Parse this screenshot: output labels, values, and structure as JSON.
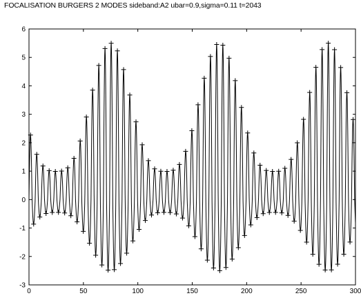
{
  "chart_data": {
    "type": "line",
    "title": "FOCALISATION  BURGERS 2 MODES sideband:A2 ubar=0.9,sigma=0.11 t=2043",
    "xlabel": "",
    "ylabel": "",
    "xlim": [
      0,
      300
    ],
    "ylim": [
      -3,
      6
    ],
    "xticks": [
      0,
      50,
      100,
      150,
      200,
      250,
      300
    ],
    "yticks": [
      -3,
      -2,
      -1,
      0,
      1,
      2,
      3,
      4,
      5,
      6
    ],
    "grid": false,
    "legend": "none",
    "series": [
      {
        "style": "solid black line with '+' markers",
        "color": "#000000",
        "carrier_period": 5.7,
        "envelope_period": 100,
        "envelope_peaks_x": [
          75,
          175,
          275
        ],
        "envelope_max_y": 5.5,
        "envelope_min_y": -2.5,
        "x": [
          0,
          2,
          4,
          6,
          8,
          10,
          12,
          14,
          16,
          18,
          20,
          22,
          24,
          26,
          28,
          30,
          32,
          34,
          36,
          38,
          40,
          42,
          44,
          46,
          48,
          50,
          52,
          54,
          56,
          58,
          60,
          62,
          64,
          66,
          68,
          70,
          72,
          74,
          76,
          78,
          80,
          82,
          84,
          86,
          88,
          90,
          92,
          94,
          96,
          98,
          100,
          102,
          104,
          106,
          108,
          110,
          112,
          114,
          116,
          118,
          120,
          122,
          124,
          126,
          128,
          130,
          132,
          134,
          136,
          138,
          140,
          142,
          144,
          146,
          148,
          150,
          152,
          154,
          156,
          158,
          160,
          162,
          164,
          166,
          168,
          170,
          172,
          174,
          176,
          178,
          180,
          182,
          184,
          186,
          188,
          190,
          192,
          194,
          196,
          198,
          200,
          202,
          204,
          206,
          208,
          210,
          212,
          214,
          216,
          218,
          220,
          222,
          224,
          226,
          228,
          230,
          232,
          234,
          236,
          238,
          240,
          242,
          244,
          246,
          248,
          250,
          252,
          254,
          256,
          258,
          260,
          262,
          264,
          266,
          268,
          270,
          272,
          274,
          276,
          278,
          280,
          282,
          284,
          286,
          288,
          290,
          292,
          294,
          296,
          298,
          300
        ]
      }
    ]
  },
  "colors": {
    "background": "#ffffff",
    "axes": "#000000",
    "line": "#000000"
  }
}
